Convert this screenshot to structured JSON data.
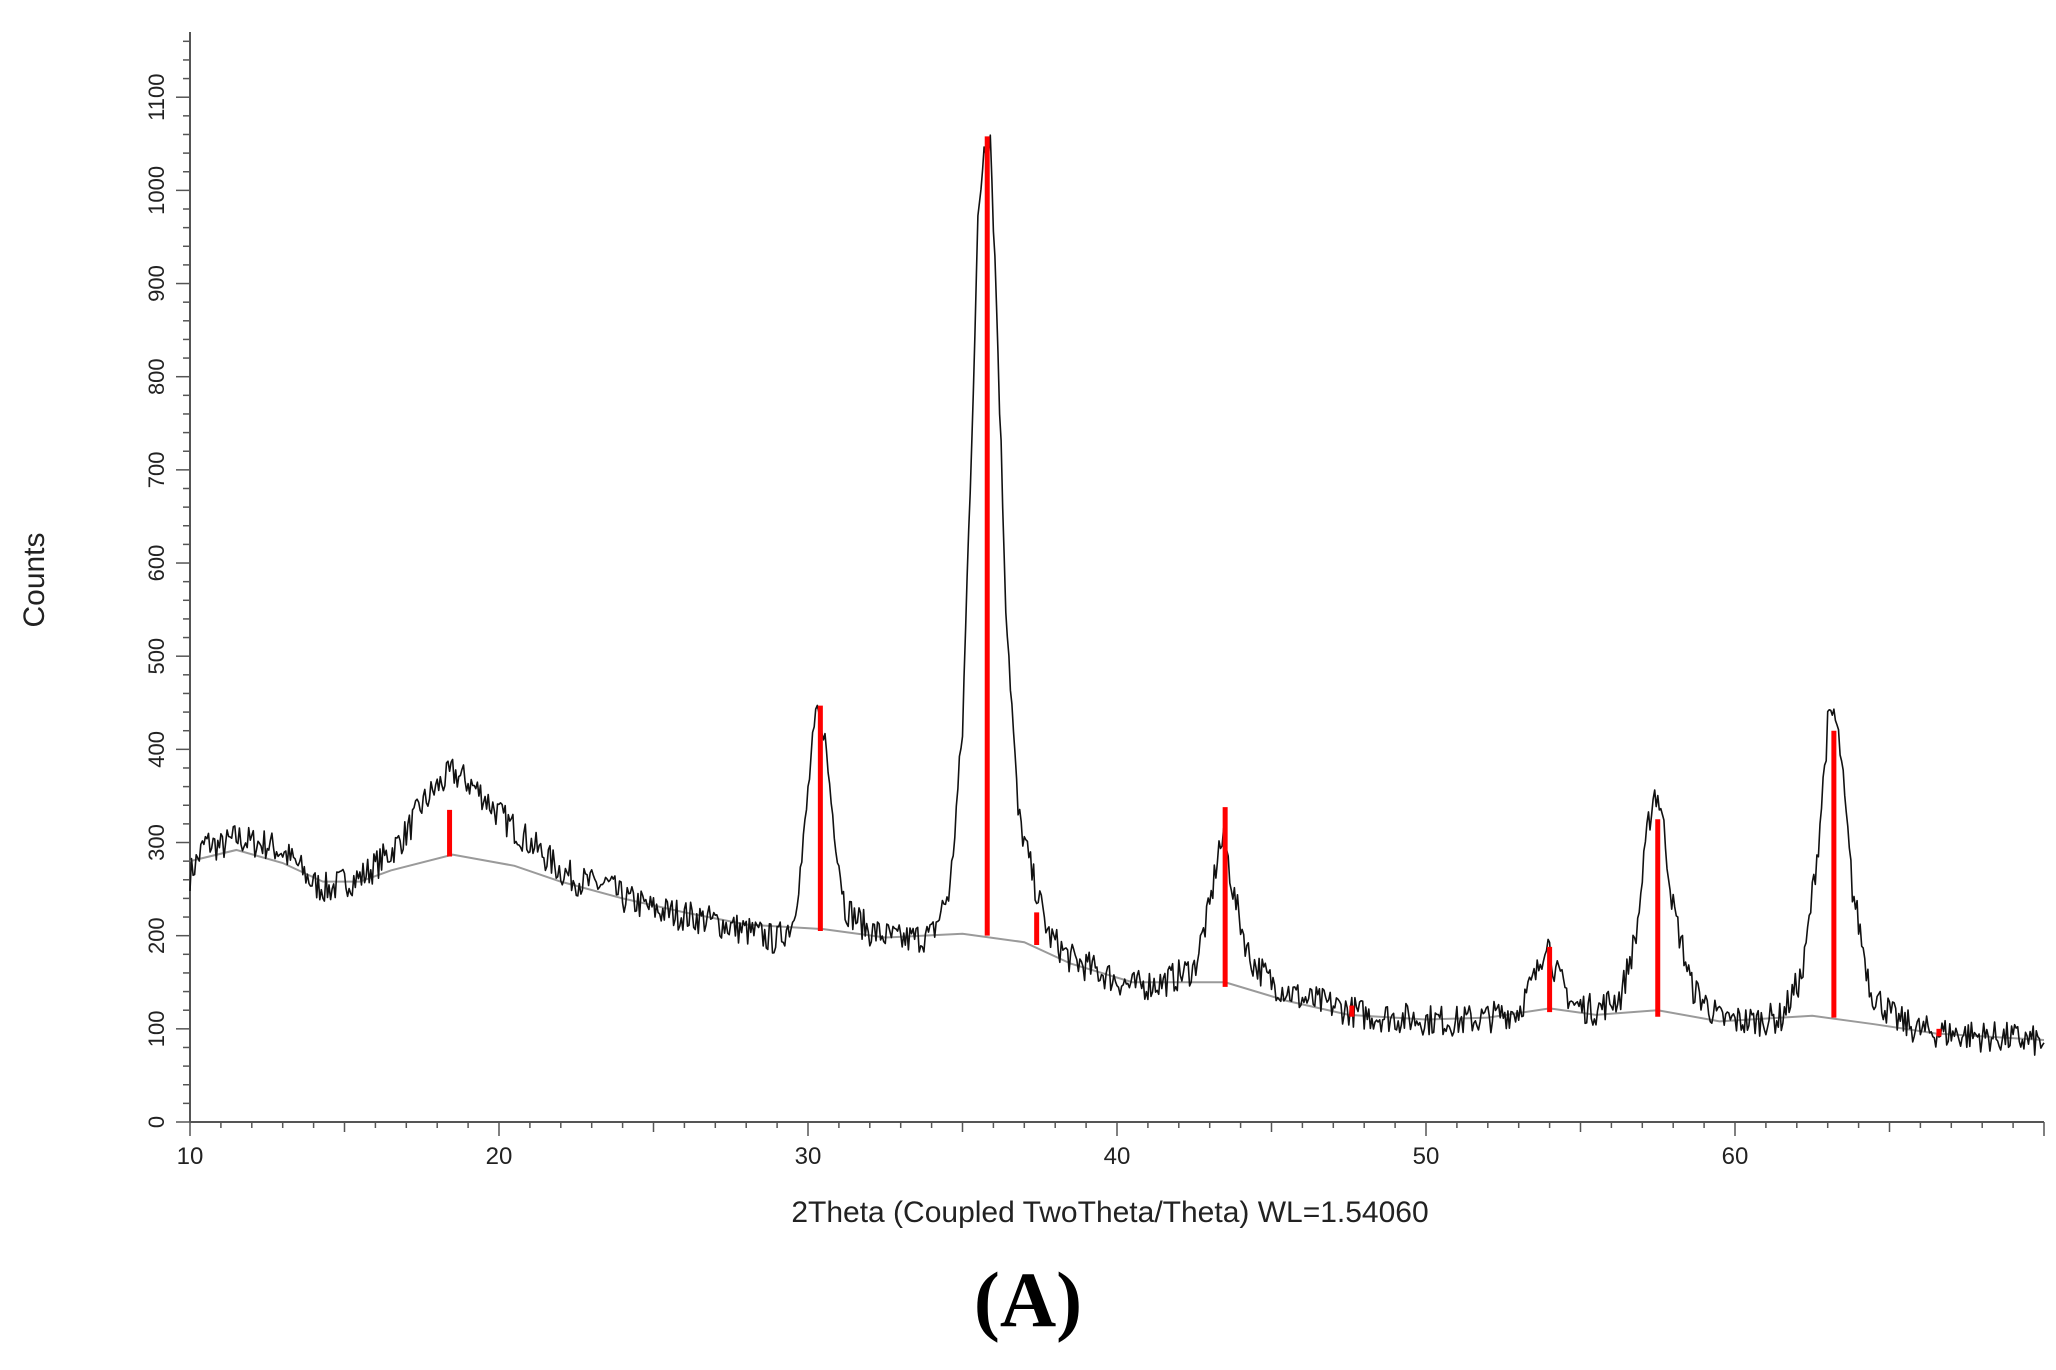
{
  "figure": {
    "panel_label": "(A)"
  },
  "chart_data": {
    "type": "line",
    "title": "",
    "xlabel": "2Theta (Coupled TwoTheta/Theta) WL=1.54060",
    "ylabel": "Counts",
    "xlim": [
      10,
      70
    ],
    "ylim": [
      0,
      1170
    ],
    "x_ticks": [
      10,
      20,
      30,
      40,
      50,
      60
    ],
    "y_ticks": [
      0,
      100,
      200,
      300,
      400,
      500,
      600,
      700,
      800,
      900,
      1000,
      1100
    ],
    "grid": false,
    "legend": "none",
    "colors": {
      "pattern": "#111111",
      "background_fit": "#9a9a9a",
      "reference_lines": "#ff0000"
    },
    "series": [
      {
        "kind": "measured_pattern",
        "points": [
          [
            10,
            265
          ],
          [
            10.5,
            300
          ],
          [
            11,
            295
          ],
          [
            11.5,
            305
          ],
          [
            12,
            300
          ],
          [
            12.5,
            298
          ],
          [
            13,
            290
          ],
          [
            13.5,
            275
          ],
          [
            14,
            255
          ],
          [
            14.5,
            250
          ],
          [
            15,
            258
          ],
          [
            15.5,
            262
          ],
          [
            16,
            275
          ],
          [
            16.5,
            290
          ],
          [
            17,
            310
          ],
          [
            17.5,
            340
          ],
          [
            18,
            360
          ],
          [
            18.5,
            375
          ],
          [
            19,
            365
          ],
          [
            19.5,
            350
          ],
          [
            20,
            330
          ],
          [
            20.5,
            315
          ],
          [
            21,
            300
          ],
          [
            21.5,
            285
          ],
          [
            22,
            270
          ],
          [
            22.5,
            260
          ],
          [
            23,
            255
          ],
          [
            23.5,
            255
          ],
          [
            24,
            240
          ],
          [
            24.5,
            235
          ],
          [
            25,
            228
          ],
          [
            26,
            222
          ],
          [
            27,
            215
          ],
          [
            28,
            205
          ],
          [
            29,
            195
          ],
          [
            29.5,
            215
          ],
          [
            29.8,
            280
          ],
          [
            30.1,
            390
          ],
          [
            30.3,
            440
          ],
          [
            30.5,
            425
          ],
          [
            30.8,
            330
          ],
          [
            31.2,
            230
          ],
          [
            32,
            205
          ],
          [
            33,
            195
          ],
          [
            34,
            200
          ],
          [
            34.6,
            250
          ],
          [
            35.0,
            420
          ],
          [
            35.3,
            740
          ],
          [
            35.5,
            960
          ],
          [
            35.7,
            1050
          ],
          [
            35.9,
            1060
          ],
          [
            36.1,
            880
          ],
          [
            36.4,
            560
          ],
          [
            36.8,
            330
          ],
          [
            37.3,
            260
          ],
          [
            37.8,
            200
          ],
          [
            38.5,
            175
          ],
          [
            39.5,
            160
          ],
          [
            40.5,
            145
          ],
          [
            41.5,
            150
          ],
          [
            42.5,
            165
          ],
          [
            43.0,
            230
          ],
          [
            43.3,
            295
          ],
          [
            43.5,
            300
          ],
          [
            43.8,
            240
          ],
          [
            44.3,
            175
          ],
          [
            45,
            150
          ],
          [
            46,
            132
          ],
          [
            47,
            125
          ],
          [
            48,
            115
          ],
          [
            49,
            112
          ],
          [
            50,
            110
          ],
          [
            51,
            108
          ],
          [
            52,
            112
          ],
          [
            53,
            120
          ],
          [
            53.6,
            160
          ],
          [
            53.9,
            200
          ],
          [
            54.2,
            160
          ],
          [
            54.8,
            125
          ],
          [
            55.5,
            120
          ],
          [
            56.3,
            135
          ],
          [
            56.8,
            200
          ],
          [
            57.2,
            320
          ],
          [
            57.4,
            355
          ],
          [
            57.6,
            340
          ],
          [
            58.0,
            230
          ],
          [
            58.6,
            145
          ],
          [
            59.5,
            110
          ],
          [
            60.5,
            108
          ],
          [
            61.5,
            112
          ],
          [
            62.2,
            160
          ],
          [
            62.7,
            300
          ],
          [
            63.0,
            425
          ],
          [
            63.2,
            440
          ],
          [
            63.4,
            400
          ],
          [
            63.8,
            250
          ],
          [
            64.4,
            140
          ],
          [
            65.2,
            110
          ],
          [
            66,
            98
          ],
          [
            67,
            95
          ],
          [
            68,
            92
          ],
          [
            69,
            90
          ],
          [
            70,
            85
          ]
        ]
      },
      {
        "kind": "background_fit",
        "points": [
          [
            10,
            280
          ],
          [
            11.5,
            292
          ],
          [
            13,
            278
          ],
          [
            14.3,
            258
          ],
          [
            15.5,
            258
          ],
          [
            16.5,
            270
          ],
          [
            18.5,
            287
          ],
          [
            20.5,
            275
          ],
          [
            22,
            258
          ],
          [
            24,
            240
          ],
          [
            26,
            225
          ],
          [
            28,
            212
          ],
          [
            30.5,
            207
          ],
          [
            32.5,
            198
          ],
          [
            35,
            202
          ],
          [
            37,
            193
          ],
          [
            38.5,
            170
          ],
          [
            40.5,
            150
          ],
          [
            43.5,
            150
          ],
          [
            45.5,
            130
          ],
          [
            47.5,
            115
          ],
          [
            50,
            110
          ],
          [
            52,
            112
          ],
          [
            54,
            122
          ],
          [
            55.5,
            115
          ],
          [
            57.5,
            120
          ],
          [
            59.5,
            108
          ],
          [
            62.5,
            114
          ],
          [
            64.5,
            105
          ],
          [
            66.5,
            95
          ],
          [
            70,
            88
          ]
        ]
      }
    ],
    "reference_peaks": [
      {
        "x": 18.4,
        "y_top": 335,
        "y_base": 285
      },
      {
        "x": 30.4,
        "y_top": 447,
        "y_base": 205
      },
      {
        "x": 35.8,
        "y_top": 1058,
        "y_base": 200
      },
      {
        "x": 37.4,
        "y_top": 225,
        "y_base": 190
      },
      {
        "x": 43.5,
        "y_top": 338,
        "y_base": 145
      },
      {
        "x": 47.6,
        "y_top": 125,
        "y_base": 113
      },
      {
        "x": 54.0,
        "y_top": 188,
        "y_base": 118
      },
      {
        "x": 57.5,
        "y_top": 325,
        "y_base": 113
      },
      {
        "x": 63.2,
        "y_top": 420,
        "y_base": 112
      },
      {
        "x": 66.6,
        "y_top": 100,
        "y_base": 92
      }
    ]
  }
}
